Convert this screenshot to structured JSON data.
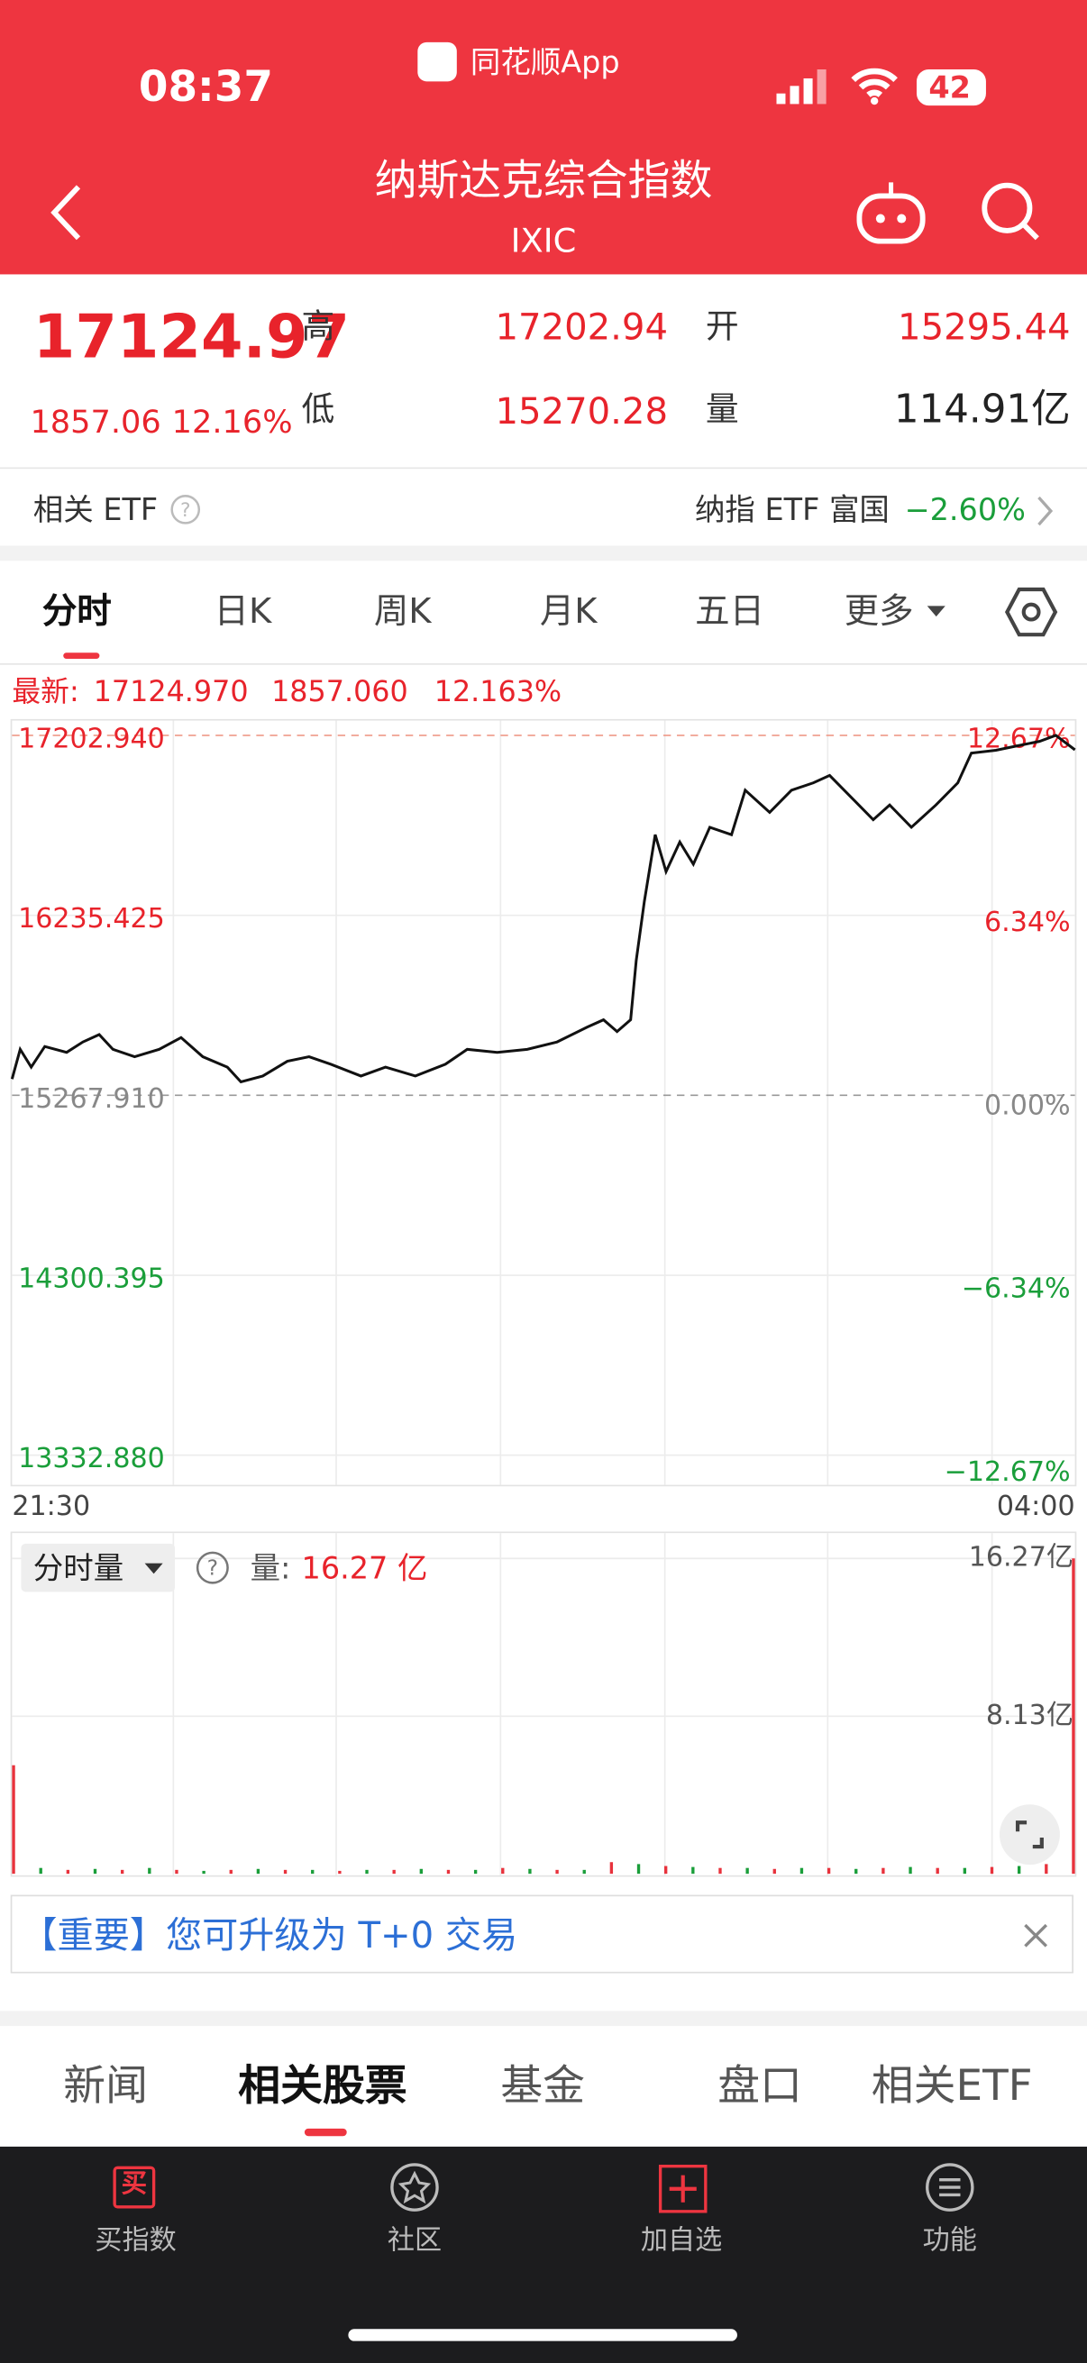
{
  "status_bar": {
    "time": "08:37",
    "app_name": "同花顺App",
    "battery": "42"
  },
  "header": {
    "title": "纳斯达克综合指数",
    "code": "IXIC"
  },
  "quote": {
    "price": "17124.97",
    "change": "1857.06",
    "change_pct": "12.16%",
    "high_label": "高",
    "high": "17202.94",
    "low_label": "低",
    "low": "15270.28",
    "open_label": "开",
    "open": "15295.44",
    "volume_label": "量",
    "volume": "114.91亿"
  },
  "etf": {
    "label": "相关 ETF",
    "name": "纳指 ETF 富国",
    "change": "−2.60%"
  },
  "period_tabs": [
    "分时",
    "日K",
    "周K",
    "月K",
    "五日",
    "更多"
  ],
  "latest": {
    "label": "最新:",
    "price": "17124.970",
    "change": "1857.060",
    "change_pct": "12.163%"
  },
  "chart_data": [
    {
      "type": "line",
      "color": "#111111",
      "x": [
        0,
        3,
        7,
        12,
        20,
        26,
        32,
        37,
        45,
        54,
        62,
        70,
        79,
        84,
        92,
        101,
        109,
        117,
        128,
        137,
        148,
        159,
        167,
        178,
        189,
        200,
        211,
        217,
        222,
        227,
        229,
        232,
        236,
        240,
        245,
        250,
        256,
        264,
        269,
        278,
        286,
        294,
        300,
        308,
        316,
        322,
        330,
        339,
        347,
        352,
        361,
        369,
        377,
        383,
        390
      ],
      "values": [
        15355.5,
        15514.8,
        15419.2,
        15530.7,
        15498.8,
        15554.6,
        15594.4,
        15514.8,
        15474.9,
        15514.8,
        15578.5,
        15474.9,
        15419.2,
        15339.6,
        15371.4,
        15451.0,
        15474.9,
        15435.1,
        15371.4,
        15419.2,
        15371.4,
        15435.1,
        15514.8,
        15498.8,
        15514.8,
        15554.6,
        15634.2,
        15674.0,
        15610.3,
        15674.0,
        15992.5,
        16311.1,
        16669.4,
        16470.3,
        16629.6,
        16510.1,
        16709.2,
        16669.4,
        16908.3,
        16788.8,
        16908.3,
        16948.1,
        16987.9,
        16868.5,
        16749.0,
        16828.6,
        16709.2,
        16828.6,
        16948.1,
        17107.4,
        17123.3,
        17147.2,
        17171.1,
        17202.94,
        17124.97
      ],
      "xlim": [
        0,
        390
      ],
      "xticks": [
        {
          "value": 0,
          "label": "21:30"
        },
        {
          "value": 390,
          "label": "04:00"
        }
      ],
      "ylim": [
        13173.6,
        17282.6
      ],
      "yticks": [
        {
          "value": 17202.94,
          "label": "17202.940"
        },
        {
          "value": 16235.425,
          "label": "16235.425"
        },
        {
          "value": 15267.91,
          "label": "15267.910"
        },
        {
          "value": 14300.395,
          "label": "14300.395"
        },
        {
          "value": 13332.88,
          "label": "13332.880"
        }
      ],
      "y2lim": [
        -13.24,
        13.19
      ],
      "y2ticks": [
        {
          "value": 12.67,
          "label": "12.67%"
        },
        {
          "value": 6.34,
          "label": "6.34%"
        },
        {
          "value": 0,
          "label": "0.00%"
        },
        {
          "value": -6.34,
          "label": "−6.34%"
        },
        {
          "value": -12.67,
          "label": "−12.67%"
        }
      ],
      "grid": true
    },
    {
      "type": "bar",
      "x": [
        0,
        10,
        20,
        30,
        40,
        50,
        60,
        70,
        80,
        90,
        100,
        110,
        120,
        130,
        140,
        150,
        160,
        170,
        180,
        190,
        200,
        210,
        220,
        230,
        240,
        250,
        260,
        270,
        280,
        290,
        300,
        310,
        320,
        330,
        340,
        350,
        360,
        370,
        380,
        390
      ],
      "values": [
        5.6,
        0.3,
        0.2,
        0.25,
        0.2,
        0.3,
        0.2,
        0.15,
        0.2,
        0.25,
        0.2,
        0.2,
        0.15,
        0.2,
        0.2,
        0.25,
        0.2,
        0.2,
        0.3,
        0.25,
        0.2,
        0.2,
        0.6,
        0.5,
        0.4,
        0.35,
        0.3,
        0.3,
        0.25,
        0.3,
        0.3,
        0.25,
        0.3,
        0.35,
        0.3,
        0.3,
        0.35,
        0.4,
        0.5,
        16.27
      ],
      "colors": [
        "#e8323c",
        "#1a9e3a",
        "#e8323c",
        "#1a9e3a",
        "#e8323c",
        "#1a9e3a",
        "#e8323c",
        "#1a9e3a",
        "#e8323c",
        "#1a9e3a",
        "#e8323c",
        "#1a9e3a",
        "#e8323c",
        "#1a9e3a",
        "#e8323c",
        "#1a9e3a",
        "#e8323c",
        "#1a9e3a",
        "#e8323c",
        "#1a9e3a",
        "#e8323c",
        "#1a9e3a",
        "#e8323c",
        "#1a9e3a",
        "#e8323c",
        "#1a9e3a",
        "#e8323c",
        "#1a9e3a",
        "#e8323c",
        "#1a9e3a",
        "#e8323c",
        "#1a9e3a",
        "#e8323c",
        "#1a9e3a",
        "#e8323c",
        "#1a9e3a",
        "#e8323c",
        "#1a9e3a",
        "#e8323c",
        "#e8323c"
      ],
      "xlim": [
        0,
        390
      ],
      "ylim": [
        0,
        17.5
      ],
      "yticks": [
        {
          "value": 8.13,
          "label": "8.13亿"
        },
        {
          "value": 16.27,
          "label": "16.27亿"
        }
      ],
      "grid": true
    }
  ],
  "volume_info": {
    "selector": "分时量",
    "label": "量:",
    "value": "16.27 亿"
  },
  "notice": {
    "tag": "【重要】",
    "text": "您可升级为 T+0 交易"
  },
  "content_tabs": [
    "新闻",
    "相关股票",
    "基金",
    "盘口",
    "相关ETF"
  ],
  "bottom_nav": [
    {
      "icon": "买",
      "label": "买指数"
    },
    {
      "label": "社区"
    },
    {
      "label": "加自选"
    },
    {
      "label": "功能"
    }
  ]
}
